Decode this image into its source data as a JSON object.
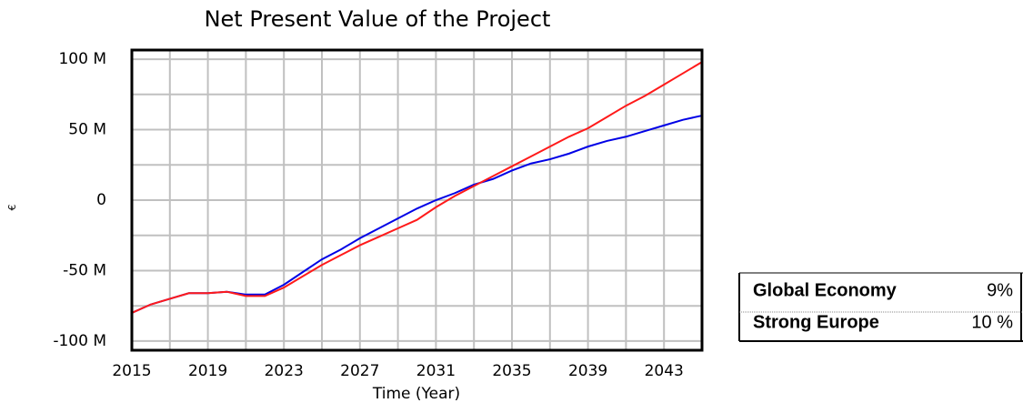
{
  "chart_data": {
    "type": "line",
    "title": "Net Present Value of the Project",
    "xlabel": "Time (Year)",
    "ylabel": "€",
    "x": [
      2015,
      2016,
      2017,
      2018,
      2019,
      2020,
      2021,
      2022,
      2023,
      2024,
      2025,
      2026,
      2027,
      2028,
      2029,
      2030,
      2031,
      2032,
      2033,
      2034,
      2035,
      2036,
      2037,
      2038,
      2039,
      2040,
      2041,
      2042,
      2043,
      2044,
      2045
    ],
    "series": [
      {
        "name": "Global Economy",
        "color": "#0000e6",
        "legend_color": "#1f3f7f",
        "legend_value": "9%",
        "values": [
          -80000000,
          -74000000,
          -70000000,
          -66000000,
          -66000000,
          -65000000,
          -67000000,
          -67000000,
          -60000000,
          -51000000,
          -42000000,
          -35000000,
          -27000000,
          -20000000,
          -13000000,
          -6000000,
          0,
          5000000,
          11000000,
          15000000,
          21000000,
          26000000,
          29000000,
          33000000,
          38000000,
          42000000,
          45000000,
          49000000,
          53000000,
          57000000,
          60000000
        ]
      },
      {
        "name": "Strong Europe",
        "color": "#ff1a1a",
        "legend_color": "#ff0000",
        "legend_value": "10 %",
        "values": [
          -80000000,
          -74000000,
          -70000000,
          -66000000,
          -66000000,
          -65000000,
          -68000000,
          -68000000,
          -62000000,
          -54000000,
          -46000000,
          -39000000,
          -32000000,
          -26000000,
          -20000000,
          -14000000,
          -5000000,
          3000000,
          10000000,
          17000000,
          24000000,
          31000000,
          38000000,
          45000000,
          51000000,
          59000000,
          67000000,
          74000000,
          82000000,
          90000000,
          98000000
        ]
      }
    ],
    "xlim": [
      2015,
      2045
    ],
    "xticks": [
      2015,
      2019,
      2023,
      2027,
      2031,
      2035,
      2039,
      2043
    ],
    "xgrid": [
      2017,
      2019,
      2021,
      2023,
      2025,
      2027,
      2029,
      2031,
      2033,
      2035,
      2037,
      2039,
      2041,
      2043
    ],
    "ylim": [
      -106500000,
      106500000
    ],
    "yticks": [
      {
        "value": 100000000,
        "label": "100 M"
      },
      {
        "value": 50000000,
        "label": "50 M"
      },
      0,
      {
        "value": -50000000,
        "label": "-50 M"
      },
      {
        "value": -100000000,
        "label": "-100 M"
      }
    ],
    "ygrid": [
      100000000,
      75000000,
      50000000,
      25000000,
      0,
      -25000000,
      -50000000,
      -75000000,
      -100000000
    ],
    "grid": true
  }
}
